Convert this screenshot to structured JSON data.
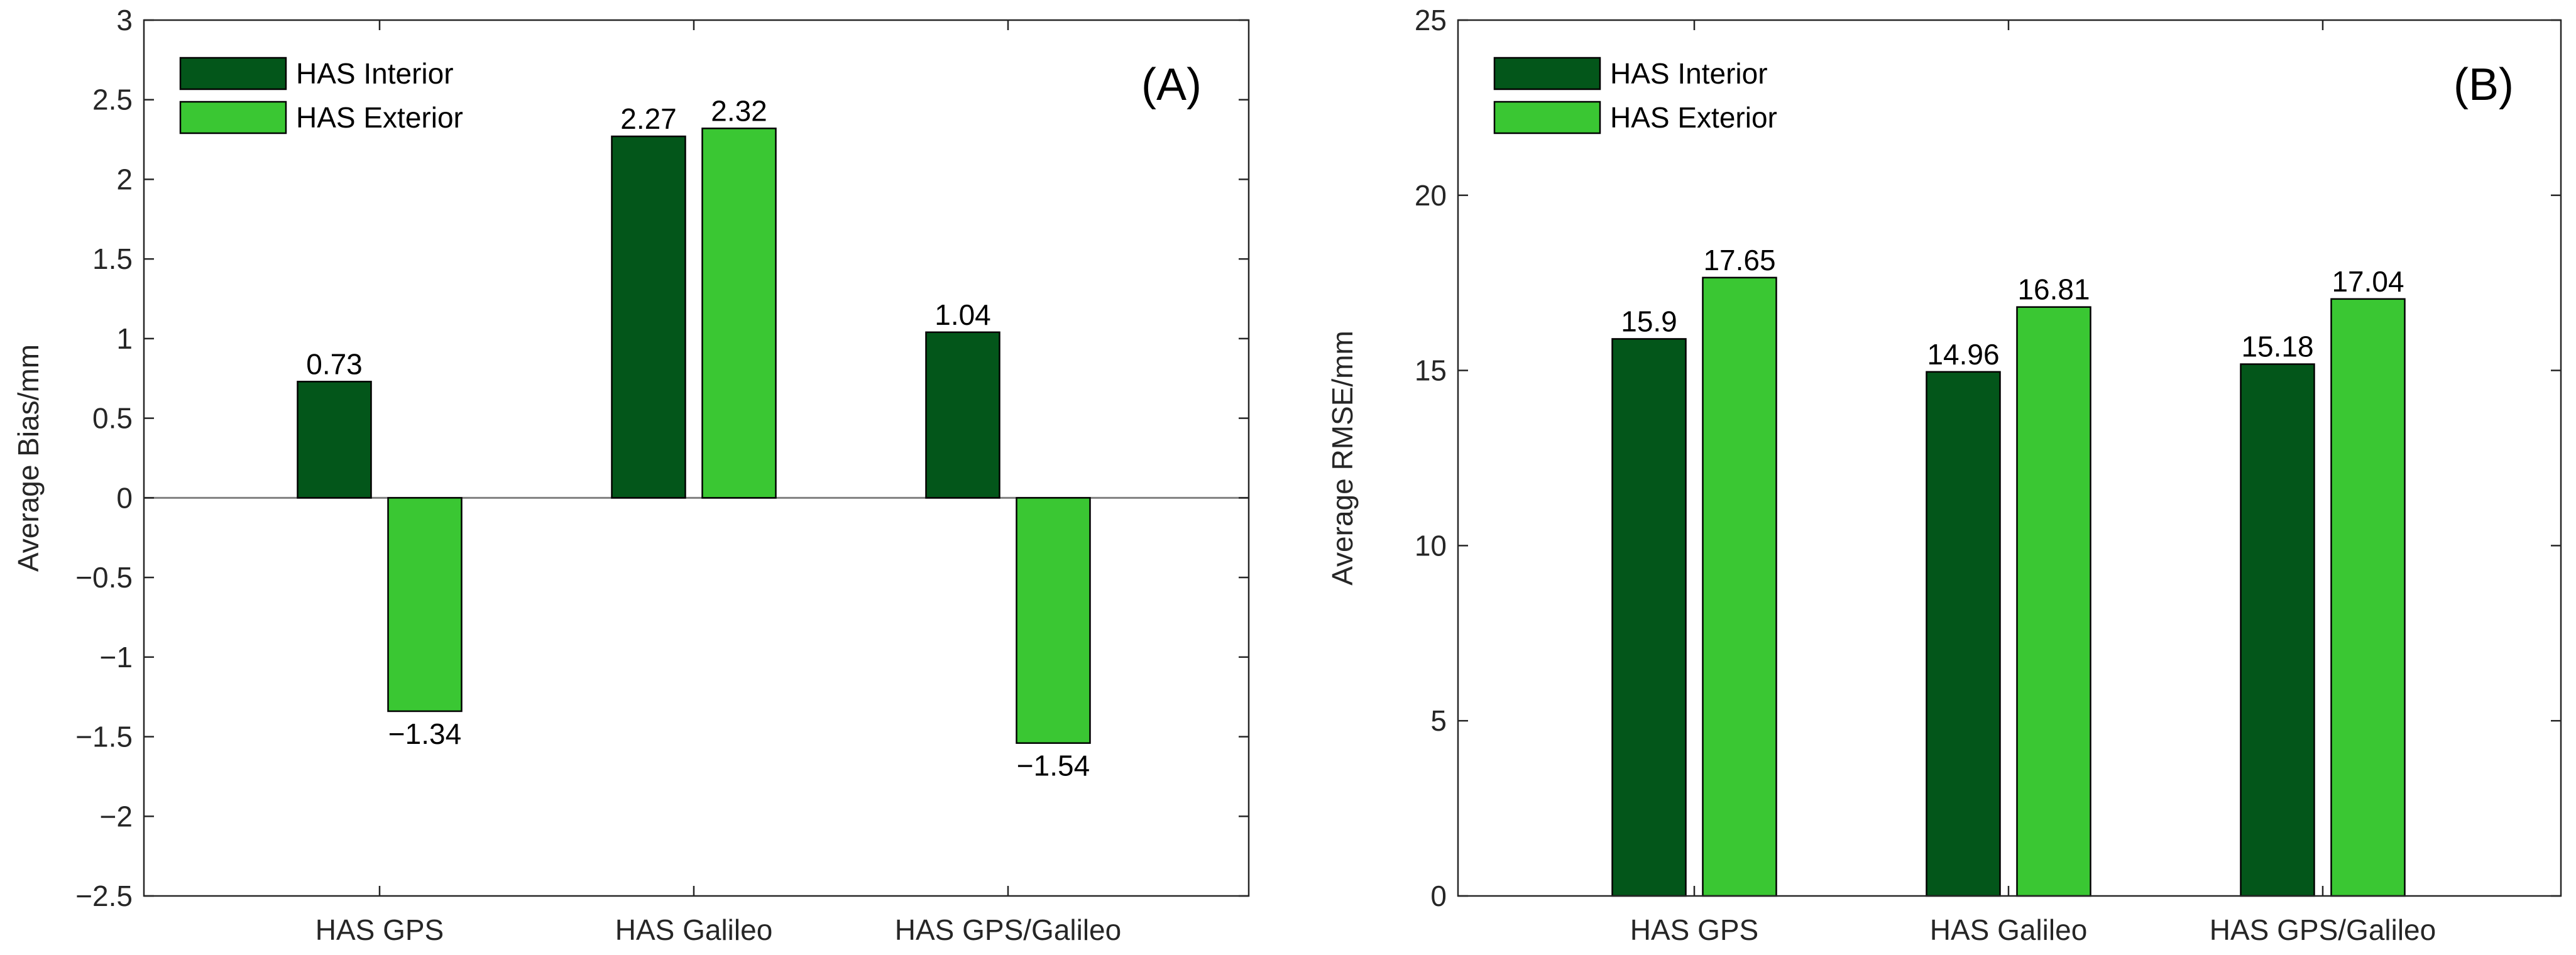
{
  "colors": {
    "interior": "#03561a",
    "exterior": "#3ac733",
    "axis": "#262626",
    "zero_line": "#808080"
  },
  "chart_data": [
    {
      "type": "bar",
      "panel_label": "(A)",
      "title": "",
      "xlabel": "",
      "ylabel": "Average Bias/mm",
      "categories": [
        "HAS GPS",
        "HAS Galileo",
        "HAS GPS/Galileo"
      ],
      "series": [
        {
          "name": "HAS Interior",
          "values": [
            0.73,
            2.27,
            1.04
          ],
          "labels": [
            "0.73",
            "2.27",
            "1.04"
          ]
        },
        {
          "name": "HAS Exterior",
          "values": [
            -1.34,
            2.32,
            -1.54
          ],
          "labels": [
            "−1.34",
            "2.32",
            "−1.54"
          ]
        }
      ],
      "ylim": [
        -2.5,
        3
      ],
      "yticks": [
        -2.5,
        -2,
        -1.5,
        -1,
        -0.5,
        0,
        0.5,
        1,
        1.5,
        2,
        2.5,
        3
      ],
      "ytick_labels": [
        "−2.5",
        "−2",
        "−1.5",
        "−1",
        "−0.5",
        "0",
        "0.5",
        "1",
        "1.5",
        "2",
        "2.5",
        "3"
      ],
      "legend": "top-left",
      "grid": false
    },
    {
      "type": "bar",
      "panel_label": "(B)",
      "title": "",
      "xlabel": "",
      "ylabel": "Average RMSE/mm",
      "categories": [
        "HAS GPS",
        "HAS Galileo",
        "HAS GPS/Galileo"
      ],
      "series": [
        {
          "name": "HAS Interior",
          "values": [
            15.9,
            14.96,
            15.18
          ],
          "labels": [
            "15.9",
            "14.96",
            "15.18"
          ]
        },
        {
          "name": "HAS Exterior",
          "values": [
            17.65,
            16.81,
            17.04
          ],
          "labels": [
            "17.65",
            "16.81",
            "17.04"
          ]
        }
      ],
      "ylim": [
        0,
        25
      ],
      "yticks": [
        0,
        5,
        10,
        15,
        20,
        25
      ],
      "ytick_labels": [
        "0",
        "5",
        "10",
        "15",
        "20",
        "25"
      ],
      "legend": "top-left",
      "grid": false
    }
  ]
}
